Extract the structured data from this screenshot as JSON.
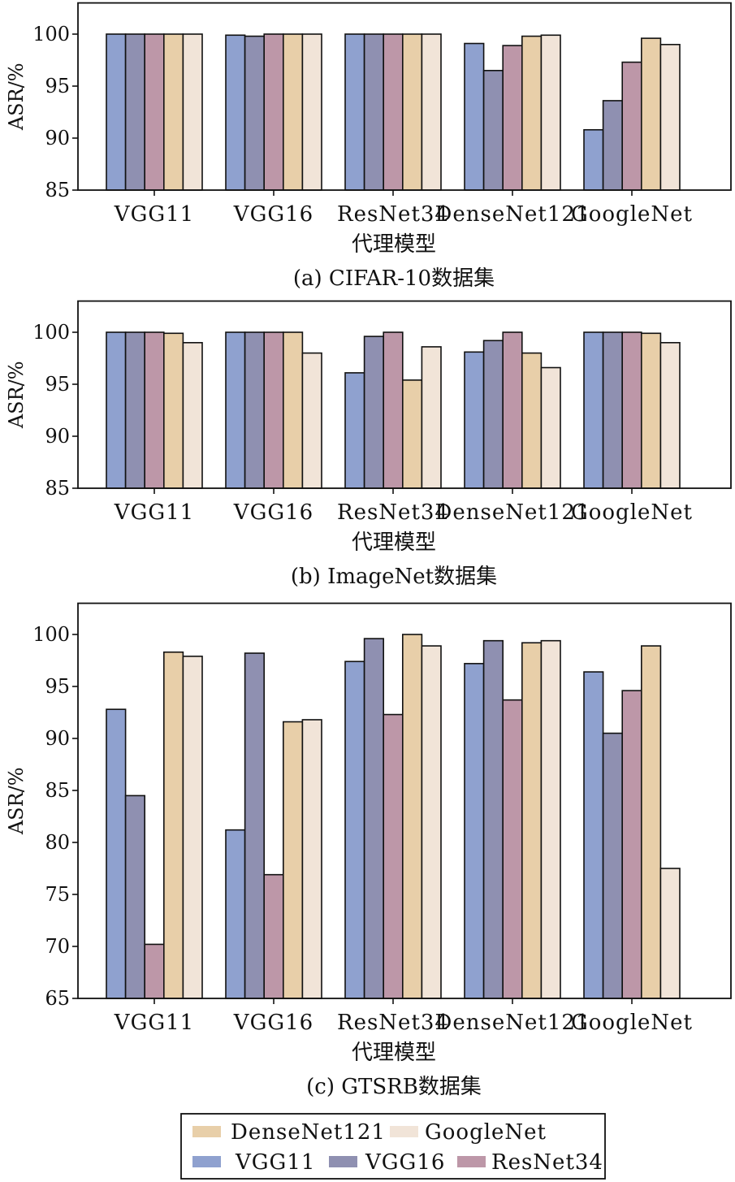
{
  "chart_data": [
    {
      "type": "bar",
      "title": "(a) CIFAR-10数据集",
      "xlabel": "代理模型",
      "ylabel": "ASR/%",
      "ylim": [
        85,
        103
      ],
      "yticks": [
        85,
        90,
        95,
        100
      ],
      "categories": [
        "VGG11",
        "VGG16",
        "ResNet34",
        "DenseNet121",
        "GoogleNet"
      ],
      "series": [
        {
          "name": "VGG11",
          "values": [
            100,
            99.9,
            100,
            99.1,
            90.8
          ]
        },
        {
          "name": "VGG16",
          "values": [
            100,
            99.8,
            100,
            96.5,
            93.6
          ]
        },
        {
          "name": "ResNet34",
          "values": [
            100,
            100,
            100,
            98.9,
            97.3
          ]
        },
        {
          "name": "DenseNet121",
          "values": [
            100,
            100,
            100,
            99.8,
            99.6
          ]
        },
        {
          "name": "GoogleNet",
          "values": [
            100,
            100,
            100,
            99.9,
            99.0
          ]
        }
      ]
    },
    {
      "type": "bar",
      "title": "(b) ImageNet数据集",
      "xlabel": "代理模型",
      "ylabel": "ASR/%",
      "ylim": [
        85,
        103
      ],
      "yticks": [
        85,
        90,
        95,
        100
      ],
      "categories": [
        "VGG11",
        "VGG16",
        "ResNet34",
        "DenseNet121",
        "GoogleNet"
      ],
      "series": [
        {
          "name": "VGG11",
          "values": [
            100,
            100,
            96.1,
            98.1,
            100
          ]
        },
        {
          "name": "VGG16",
          "values": [
            100,
            100,
            99.6,
            99.2,
            100
          ]
        },
        {
          "name": "ResNet34",
          "values": [
            100,
            100,
            100,
            100,
            100
          ]
        },
        {
          "name": "DenseNet121",
          "values": [
            99.9,
            100,
            95.4,
            98.0,
            99.9
          ]
        },
        {
          "name": "GoogleNet",
          "values": [
            99.0,
            98.0,
            98.6,
            96.6,
            99.0
          ]
        }
      ]
    },
    {
      "type": "bar",
      "title": "(c) GTSRB数据集",
      "xlabel": "代理模型",
      "ylabel": "ASR/%",
      "ylim": [
        65,
        103
      ],
      "yticks": [
        65,
        70,
        75,
        80,
        85,
        90,
        95,
        100
      ],
      "categories": [
        "VGG11",
        "VGG16",
        "ResNet34",
        "DenseNet121",
        "GoogleNet"
      ],
      "series": [
        {
          "name": "VGG11",
          "values": [
            92.8,
            81.2,
            97.4,
            97.2,
            96.4
          ]
        },
        {
          "name": "VGG16",
          "values": [
            84.5,
            98.2,
            99.6,
            99.4,
            90.5
          ]
        },
        {
          "name": "ResNet34",
          "values": [
            70.2,
            76.9,
            92.3,
            93.7,
            94.6
          ]
        },
        {
          "name": "DenseNet121",
          "values": [
            98.3,
            91.6,
            100,
            99.2,
            98.9
          ]
        },
        {
          "name": "GoogleNet",
          "values": [
            97.9,
            91.8,
            98.9,
            99.4,
            77.5
          ]
        }
      ]
    }
  ],
  "legend": {
    "placement": "bottom-center",
    "rows": [
      [
        "DenseNet121",
        "GoogleNet"
      ],
      [
        "VGG11",
        "VGG16",
        "ResNet34"
      ]
    ]
  },
  "colors": {
    "VGG11": "#8fa1cf",
    "VGG16": "#8f90b1",
    "ResNet34": "#bd97a8",
    "DenseNet121": "#e8cfa9",
    "GoogleNet": "#f1e4d8"
  }
}
